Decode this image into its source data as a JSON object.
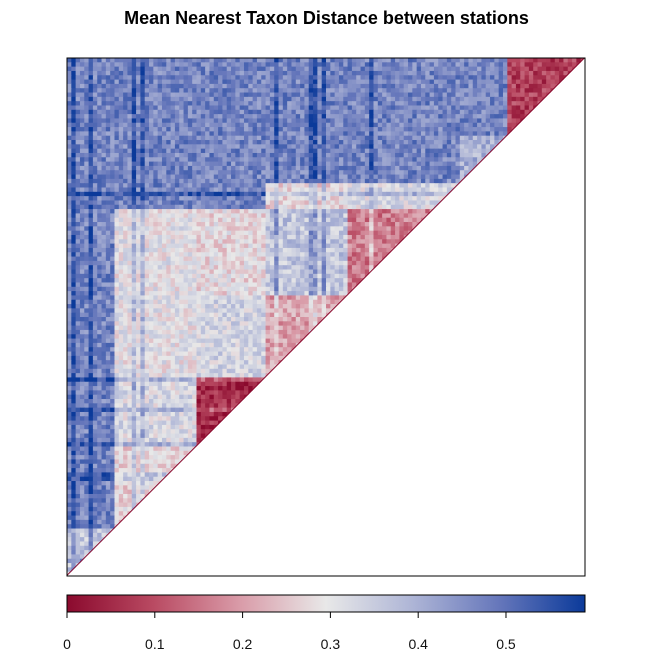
{
  "chart_data": {
    "type": "heatmap",
    "title": "Mean Nearest Taxon Distance between stations",
    "layout": "lower-left triangle, diagonal from bottom-left to top-right",
    "colorbar": {
      "min": 0,
      "max": 0.59,
      "colors": [
        "#8b0a2e",
        "#b94a62",
        "#d99ba8",
        "#e8e8e8",
        "#aeb5d6",
        "#6677bb",
        "#0b3a9a"
      ],
      "ticks": [
        0,
        0.1,
        0.2,
        0.3,
        0.4,
        0.5
      ],
      "tick_labels": [
        "0",
        "0.1",
        "0.2",
        "0.3",
        "0.4",
        "0.5"
      ]
    },
    "background_value": 0.47,
    "clusters": [
      {
        "start": 0.0,
        "end": 0.09,
        "within": 0.36
      },
      {
        "start": 0.09,
        "end": 0.25,
        "within": 0.27
      },
      {
        "start": 0.25,
        "end": 0.38,
        "within": 0.05
      },
      {
        "start": 0.38,
        "end": 0.54,
        "within": 0.2
      },
      {
        "start": 0.54,
        "end": 0.71,
        "within": 0.16
      },
      {
        "start": 0.71,
        "end": 0.76,
        "within": 0.32
      },
      {
        "start": 0.76,
        "end": 0.85,
        "within": 0.4
      },
      {
        "start": 0.85,
        "end": 1.0,
        "within": 0.08
      }
    ],
    "block_values": [
      {
        "row": 1,
        "col": 2,
        "value": 0.32
      },
      {
        "row": 1,
        "col": 3,
        "value": 0.3
      },
      {
        "row": 1,
        "col": 4,
        "value": 0.3
      },
      {
        "row": 2,
        "col": 3,
        "value": 0.33
      },
      {
        "row": 2,
        "col": 4,
        "value": 0.28
      },
      {
        "row": 3,
        "col": 4,
        "value": 0.36
      },
      {
        "row": 3,
        "col": 5,
        "value": 0.27
      },
      {
        "row": 4,
        "col": 5,
        "value": 0.32
      }
    ]
  }
}
